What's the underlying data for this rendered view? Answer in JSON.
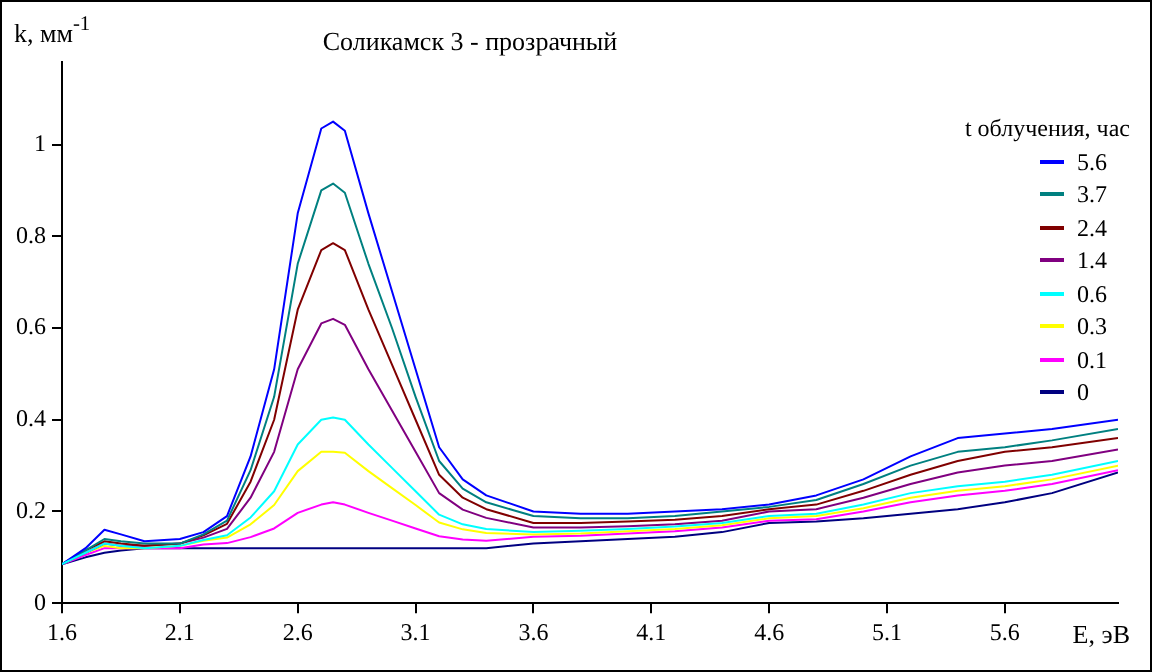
{
  "chart_data": {
    "type": "line",
    "title": "Соликамск 3 - прозрачный",
    "xlabel": "E, эВ",
    "ylabel": "k, мм$^{-1}$",
    "legend_title": "t облучения, час",
    "x": [
      1.6,
      1.7,
      1.78,
      1.85,
      1.95,
      2.1,
      2.2,
      2.3,
      2.4,
      2.5,
      2.6,
      2.7,
      2.75,
      2.8,
      2.9,
      3.0,
      3.1,
      3.2,
      3.3,
      3.4,
      3.6,
      3.8,
      4.0,
      4.2,
      4.4,
      4.6,
      4.8,
      5.0,
      5.2,
      5.4,
      5.6,
      5.8,
      6.08
    ],
    "xlim": [
      1.6,
      6.08
    ],
    "xticks": [
      1.6,
      2.1,
      2.6,
      3.1,
      3.6,
      4.1,
      4.6,
      5.1,
      5.6
    ],
    "ylim": [
      0,
      1.18
    ],
    "yticks": [
      0,
      0.2,
      0.4,
      0.6,
      0.8,
      1
    ],
    "grid": false,
    "legend": "top right",
    "marker": "none",
    "line_style": "solid",
    "series": [
      {
        "name": "5.6",
        "color": "#0000ff",
        "values": [
          0.085,
          0.12,
          0.16,
          0.15,
          0.135,
          0.14,
          0.155,
          0.19,
          0.32,
          0.51,
          0.85,
          1.035,
          1.05,
          1.03,
          0.85,
          0.68,
          0.51,
          0.34,
          0.27,
          0.235,
          0.2,
          0.195,
          0.195,
          0.2,
          0.205,
          0.215,
          0.235,
          0.27,
          0.32,
          0.36,
          0.37,
          0.38,
          0.4
        ]
      },
      {
        "name": "3.7",
        "color": "#008080",
        "values": [
          0.085,
          0.115,
          0.14,
          0.135,
          0.13,
          0.13,
          0.15,
          0.18,
          0.29,
          0.45,
          0.74,
          0.9,
          0.915,
          0.895,
          0.74,
          0.6,
          0.45,
          0.31,
          0.25,
          0.22,
          0.19,
          0.185,
          0.185,
          0.19,
          0.2,
          0.21,
          0.225,
          0.26,
          0.3,
          0.33,
          0.34,
          0.355,
          0.38
        ]
      },
      {
        "name": "2.4",
        "color": "#800000",
        "values": [
          0.085,
          0.115,
          0.135,
          0.13,
          0.125,
          0.13,
          0.148,
          0.173,
          0.265,
          0.4,
          0.64,
          0.77,
          0.785,
          0.77,
          0.64,
          0.52,
          0.4,
          0.28,
          0.23,
          0.205,
          0.175,
          0.175,
          0.178,
          0.182,
          0.19,
          0.205,
          0.215,
          0.245,
          0.28,
          0.31,
          0.33,
          0.34,
          0.36
        ]
      },
      {
        "name": "1.4",
        "color": "#800080",
        "values": [
          0.085,
          0.11,
          0.13,
          0.125,
          0.125,
          0.13,
          0.143,
          0.162,
          0.23,
          0.33,
          0.51,
          0.61,
          0.62,
          0.607,
          0.51,
          0.42,
          0.33,
          0.24,
          0.204,
          0.186,
          0.165,
          0.165,
          0.168,
          0.172,
          0.18,
          0.2,
          0.205,
          0.23,
          0.26,
          0.285,
          0.3,
          0.31,
          0.335
        ]
      },
      {
        "name": "0.6",
        "color": "#00ffff",
        "values": [
          0.085,
          0.11,
          0.13,
          0.125,
          0.12,
          0.125,
          0.138,
          0.148,
          0.187,
          0.244,
          0.346,
          0.4,
          0.405,
          0.4,
          0.346,
          0.295,
          0.244,
          0.193,
          0.172,
          0.162,
          0.155,
          0.158,
          0.162,
          0.167,
          0.175,
          0.19,
          0.195,
          0.215,
          0.24,
          0.255,
          0.265,
          0.28,
          0.31
        ]
      },
      {
        "name": "0.3",
        "color": "#ffff00",
        "values": [
          0.085,
          0.11,
          0.125,
          0.12,
          0.12,
          0.125,
          0.136,
          0.143,
          0.172,
          0.214,
          0.288,
          0.33,
          0.33,
          0.328,
          0.288,
          0.251,
          0.214,
          0.176,
          0.161,
          0.153,
          0.15,
          0.152,
          0.157,
          0.162,
          0.17,
          0.185,
          0.19,
          0.207,
          0.23,
          0.245,
          0.255,
          0.27,
          0.3
        ]
      },
      {
        "name": "0.1",
        "color": "#ff00ff",
        "values": [
          0.085,
          0.105,
          0.12,
          0.12,
          0.12,
          0.12,
          0.128,
          0.131,
          0.144,
          0.163,
          0.197,
          0.215,
          0.22,
          0.215,
          0.197,
          0.18,
          0.163,
          0.146,
          0.139,
          0.136,
          0.145,
          0.147,
          0.152,
          0.157,
          0.165,
          0.18,
          0.183,
          0.2,
          0.22,
          0.235,
          0.245,
          0.26,
          0.29
        ]
      },
      {
        "name": "0",
        "color": "#000080",
        "values": [
          0.085,
          0.1,
          0.11,
          0.115,
          0.12,
          0.12,
          0.12,
          0.12,
          0.12,
          0.12,
          0.12,
          0.12,
          0.12,
          0.12,
          0.12,
          0.12,
          0.12,
          0.12,
          0.12,
          0.12,
          0.13,
          0.135,
          0.14,
          0.145,
          0.155,
          0.175,
          0.178,
          0.185,
          0.195,
          0.205,
          0.22,
          0.24,
          0.285
        ]
      }
    ]
  }
}
